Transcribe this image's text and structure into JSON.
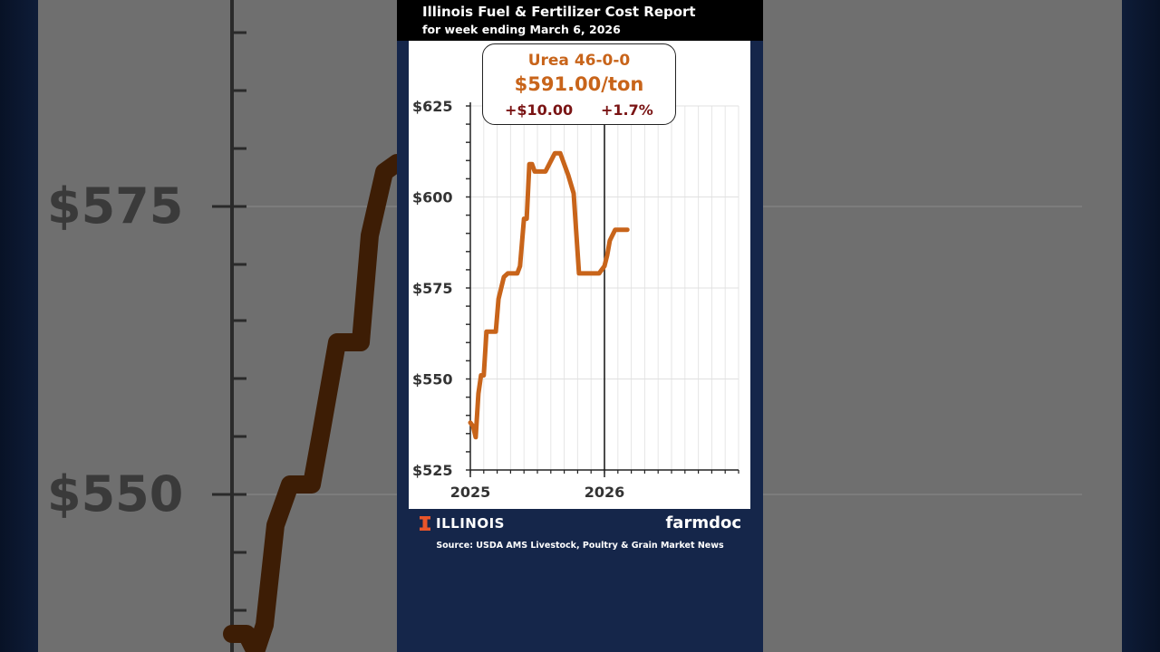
{
  "report": {
    "title": "Illinois Fuel & Fertilizer Cost Report",
    "subtitle": "for week ending March 6, 2026"
  },
  "callout": {
    "product": "Urea 46-0-0",
    "price": "$591.00/ton",
    "change": "+$10.00",
    "pct_change": "+1.7%"
  },
  "branding": {
    "institution": "ILLINOIS",
    "publisher": "farmdoc",
    "source": "Source: USDA AMS Livestock, Poultry & Grain Market News"
  },
  "background": {
    "labels": [
      "$575",
      "$550"
    ]
  },
  "colors": {
    "line": "#c8641a",
    "callout_text": "#c8641a",
    "change_text": "#7a1414",
    "card_bg": "#15264a",
    "header_bg": "#000000"
  },
  "chart_data": {
    "type": "line",
    "title": "Urea 46-0-0",
    "ylabel": "$/ton",
    "xlabel": "",
    "ylim": [
      525,
      625
    ],
    "yticks": [
      525,
      550,
      575,
      600,
      625
    ],
    "ytick_labels": [
      "$525",
      "$550",
      "$575",
      "$600",
      "$625"
    ],
    "xlim": [
      2025.0,
      2027.0
    ],
    "xticks": [
      2025,
      2026
    ],
    "xtick_labels": [
      "2025",
      "2026"
    ],
    "grid": true,
    "marker_x": 2026.0,
    "series": [
      {
        "name": "Urea 46-0-0",
        "x": [
          2025.0,
          2025.02,
          2025.04,
          2025.06,
          2025.08,
          2025.1,
          2025.12,
          2025.14,
          2025.15,
          2025.19,
          2025.21,
          2025.25,
          2025.28,
          2025.3,
          2025.33,
          2025.35,
          2025.37,
          2025.4,
          2025.42,
          2025.44,
          2025.46,
          2025.48,
          2025.52,
          2025.56,
          2025.63,
          2025.67,
          2025.73,
          2025.77,
          2025.81,
          2025.85,
          2025.88,
          2025.92,
          2025.94,
          2025.96,
          2025.98,
          2026.0,
          2026.02,
          2026.04,
          2026.08,
          2026.12,
          2026.13,
          2026.15,
          2026.17
        ],
        "values": [
          538,
          537,
          534,
          546,
          551,
          551,
          563,
          563,
          563,
          563,
          572,
          578,
          579,
          579,
          579,
          579,
          581,
          594,
          594,
          609,
          609,
          607,
          607,
          607,
          612,
          612,
          606,
          601,
          579,
          579,
          579,
          579,
          579,
          579,
          580,
          581,
          584,
          588,
          591,
          591,
          591,
          591,
          591
        ]
      }
    ]
  }
}
